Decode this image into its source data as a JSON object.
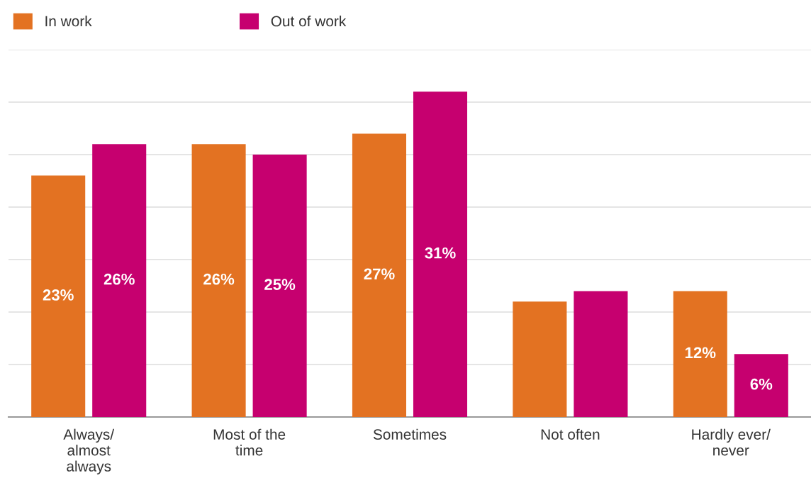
{
  "chart_data": {
    "type": "bar",
    "categories": [
      "Always/\nalmost\nalways",
      "Most of the\ntime",
      "Sometimes",
      "Not often",
      "Hardly ever/\nnever"
    ],
    "series": [
      {
        "name": "In work",
        "color": "#e37222",
        "values": [
          23,
          26,
          27,
          11,
          12
        ],
        "value_labels": [
          "23%",
          "26%",
          "27%",
          null,
          "12%"
        ]
      },
      {
        "name": "Out of work",
        "color": "#c6006f",
        "values": [
          26,
          25,
          31,
          12,
          6
        ],
        "value_labels": [
          "26%",
          "25%",
          "31%",
          null,
          "6%"
        ]
      }
    ],
    "ylim": [
      0,
      35
    ],
    "yticks": [
      {
        "value": 0,
        "label": null
      },
      {
        "value": 5,
        "label": null
      },
      {
        "value": 10,
        "label": null
      },
      {
        "value": 15,
        "label": null
      },
      {
        "value": 20,
        "label": null
      },
      {
        "value": 25,
        "label": null
      },
      {
        "value": 30,
        "label": null
      },
      {
        "value": 35,
        "label": null
      }
    ],
    "tick_labels": "x",
    "grid": "y",
    "legend": "top left"
  }
}
